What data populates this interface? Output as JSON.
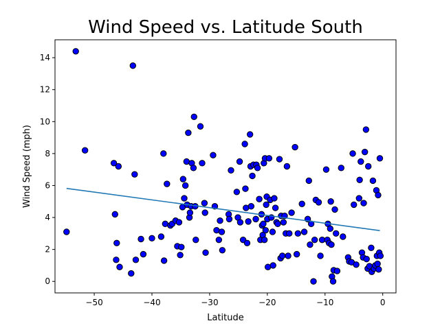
{
  "chart_data": {
    "type": "scatter",
    "title": "Wind Speed vs. Latitude South",
    "xlabel": "Latitude",
    "ylabel": "Wind Speed (mph)",
    "xlim": [
      -56.8,
      2.3
    ],
    "ylim": [
      -0.72,
      15.12
    ],
    "xticks": [
      -50,
      -40,
      -30,
      -20,
      -10,
      0
    ],
    "xtick_labels": [
      "−50",
      "−40",
      "−30",
      "−20",
      "−10",
      "0"
    ],
    "yticks": [
      0,
      2,
      4,
      6,
      8,
      10,
      12,
      14
    ],
    "grid": false,
    "point_color": "#0000ff",
    "point_edge_color": "#000000",
    "regression_color": "#1f77b4",
    "regression": {
      "x": [
        -54.8,
        -0.5
      ],
      "y": [
        5.82,
        3.18
      ]
    },
    "points": [
      [
        -54.8,
        3.1
      ],
      [
        -53.2,
        14.4
      ],
      [
        -51.6,
        8.2
      ],
      [
        -46.6,
        7.4
      ],
      [
        -46.4,
        4.2
      ],
      [
        -46.2,
        1.35
      ],
      [
        -46.1,
        2.4
      ],
      [
        -45.8,
        7.2
      ],
      [
        -45.6,
        0.9
      ],
      [
        -43.6,
        0.5
      ],
      [
        -43.3,
        13.5
      ],
      [
        -43.0,
        6.7
      ],
      [
        -42.8,
        1.35
      ],
      [
        -41.9,
        2.65
      ],
      [
        -41.5,
        1.7
      ],
      [
        -40.0,
        2.7
      ],
      [
        -38.4,
        2.8
      ],
      [
        -38.0,
        8.0
      ],
      [
        -37.9,
        1.3
      ],
      [
        -37.7,
        3.6
      ],
      [
        -37.4,
        6.1
      ],
      [
        -36.8,
        3.5
      ],
      [
        -36.5,
        3.6
      ],
      [
        -35.9,
        3.8
      ],
      [
        -35.6,
        2.2
      ],
      [
        -35.3,
        3.7
      ],
      [
        -35.1,
        1.65
      ],
      [
        -34.9,
        2.15
      ],
      [
        -34.7,
        4.65
      ],
      [
        -34.6,
        6.4
      ],
      [
        -34.4,
        5.2
      ],
      [
        -34.2,
        6.0
      ],
      [
        -34.0,
        7.5
      ],
      [
        -33.9,
        4.8
      ],
      [
        -33.7,
        9.3
      ],
      [
        -33.5,
        4.0
      ],
      [
        -33.4,
        4.3
      ],
      [
        -33.2,
        4.7
      ],
      [
        -33.1,
        7.4
      ],
      [
        -32.8,
        7.1
      ],
      [
        -32.7,
        10.3
      ],
      [
        -32.5,
        4.7
      ],
      [
        -32.4,
        2.6
      ],
      [
        -31.6,
        9.7
      ],
      [
        -31.3,
        7.4
      ],
      [
        -30.9,
        4.9
      ],
      [
        -30.8,
        4.3
      ],
      [
        -30.7,
        1.8
      ],
      [
        -29.4,
        7.9
      ],
      [
        -29.1,
        4.7
      ],
      [
        -28.8,
        3.2
      ],
      [
        -28.4,
        2.6
      ],
      [
        -28.2,
        3.8
      ],
      [
        -27.9,
        3.1
      ],
      [
        -27.8,
        1.95
      ],
      [
        -26.7,
        4.2
      ],
      [
        -26.6,
        3.9
      ],
      [
        -26.3,
        6.95
      ],
      [
        -25.3,
        5.6
      ],
      [
        -25.1,
        4.0
      ],
      [
        -24.8,
        7.5
      ],
      [
        -24.7,
        3.7
      ],
      [
        -24.2,
        2.6
      ],
      [
        -23.9,
        8.6
      ],
      [
        -23.8,
        5.8
      ],
      [
        -23.7,
        4.6
      ],
      [
        -23.5,
        2.4
      ],
      [
        -23.3,
        3.75
      ],
      [
        -23.0,
        9.2
      ],
      [
        -22.9,
        7.2
      ],
      [
        -22.8,
        4.7
      ],
      [
        -22.6,
        6.6
      ],
      [
        -22.4,
        7.3
      ],
      [
        -22.0,
        3.9
      ],
      [
        -21.9,
        7.3
      ],
      [
        -21.7,
        7.1
      ],
      [
        -21.4,
        5.15
      ],
      [
        -21.2,
        2.6
      ],
      [
        -21.0,
        4.2
      ],
      [
        -20.9,
        3.5
      ],
      [
        -20.8,
        2.9
      ],
      [
        -20.7,
        3.6
      ],
      [
        -20.6,
        7.4
      ],
      [
        -20.5,
        2.6
      ],
      [
        -20.4,
        7.7
      ],
      [
        -20.3,
        3.2
      ],
      [
        -20.2,
        4.8
      ],
      [
        -20.1,
        5.3
      ],
      [
        -20.0,
        3.9
      ],
      [
        -19.9,
        0.9
      ],
      [
        -19.7,
        7.7
      ],
      [
        -19.5,
        5.1
      ],
      [
        -19.3,
        4.0
      ],
      [
        -19.1,
        3.1
      ],
      [
        -19.0,
        1.0
      ],
      [
        -18.8,
        5.2
      ],
      [
        -18.6,
        4.6
      ],
      [
        -18.4,
        3.7
      ],
      [
        -18.2,
        3.6
      ],
      [
        -17.9,
        7.65
      ],
      [
        -17.7,
        1.45
      ],
      [
        -17.6,
        4.1
      ],
      [
        -17.4,
        1.6
      ],
      [
        -17.2,
        3.7
      ],
      [
        -17.0,
        4.1
      ],
      [
        -16.8,
        3.0
      ],
      [
        -16.6,
        7.2
      ],
      [
        -16.4,
        1.6
      ],
      [
        -16.2,
        3.0
      ],
      [
        -15.8,
        4.3
      ],
      [
        -15.2,
        8.4
      ],
      [
        -14.9,
        1.7
      ],
      [
        -14.7,
        3.0
      ],
      [
        -14.0,
        4.85
      ],
      [
        -13.6,
        3.1
      ],
      [
        -13.0,
        3.9
      ],
      [
        -12.8,
        6.3
      ],
      [
        -12.6,
        2.3
      ],
      [
        -12.4,
        3.6
      ],
      [
        -12.0,
        0.0
      ],
      [
        -11.8,
        2.6
      ],
      [
        -11.6,
        5.1
      ],
      [
        -11.1,
        4.95
      ],
      [
        -10.8,
        1.6
      ],
      [
        -10.5,
        2.6
      ],
      [
        -9.8,
        7.0
      ],
      [
        -9.6,
        2.6
      ],
      [
        -9.5,
        3.6
      ],
      [
        -9.3,
        2.4
      ],
      [
        -9.1,
        3.3
      ],
      [
        -9.0,
        5.0
      ],
      [
        -8.9,
        2.3
      ],
      [
        -8.8,
        0.3
      ],
      [
        -8.6,
        0.0
      ],
      [
        -8.5,
        0.7
      ],
      [
        -8.3,
        4.5
      ],
      [
        -8.1,
        3.0
      ],
      [
        -7.9,
        0.65
      ],
      [
        -7.2,
        7.1
      ],
      [
        -6.9,
        2.8
      ],
      [
        -6.0,
        1.5
      ],
      [
        -5.8,
        1.25
      ],
      [
        -5.4,
        1.2
      ],
      [
        -5.2,
        8.0
      ],
      [
        -5.0,
        4.8
      ],
      [
        -4.6,
        1.05
      ],
      [
        -4.1,
        5.2
      ],
      [
        -4.0,
        6.35
      ],
      [
        -3.8,
        7.5
      ],
      [
        -3.6,
        1.8
      ],
      [
        -3.4,
        1.5
      ],
      [
        -3.3,
        4.9
      ],
      [
        -3.1,
        8.1
      ],
      [
        -2.9,
        9.5
      ],
      [
        -2.8,
        1.4
      ],
      [
        -2.6,
        0.8
      ],
      [
        -2.5,
        7.2
      ],
      [
        -2.3,
        0.95
      ],
      [
        -2.0,
        2.1
      ],
      [
        -1.9,
        0.6
      ],
      [
        -1.7,
        6.3
      ],
      [
        -1.5,
        0.8
      ],
      [
        -1.3,
        1.0
      ],
      [
        -1.1,
        5.7
      ],
      [
        -1.0,
        1.6
      ],
      [
        -0.9,
        1.1
      ],
      [
        -0.8,
        5.4
      ],
      [
        -0.7,
        0.75
      ],
      [
        -0.6,
        1.8
      ],
      [
        -0.5,
        7.7
      ],
      [
        -0.4,
        1.6
      ]
    ]
  }
}
